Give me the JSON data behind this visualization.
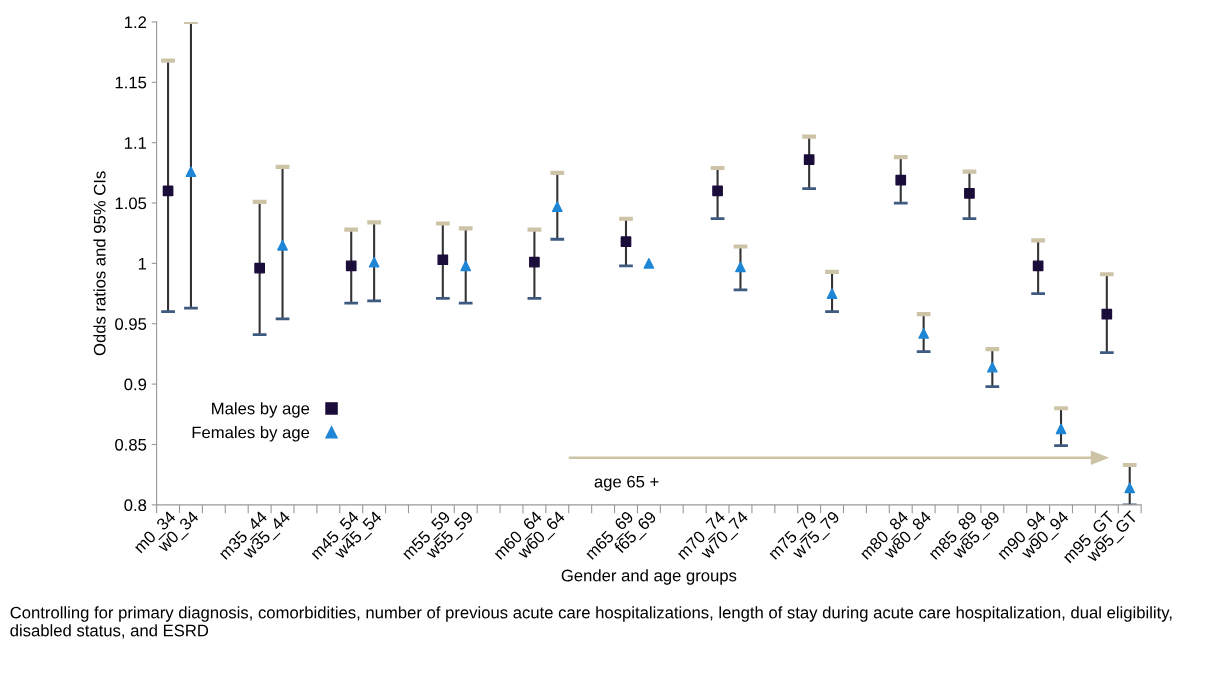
{
  "chart_data": {
    "type": "scatter",
    "xlabel": "Gender and age groups",
    "ylabel": "Odds ratios and 95% CIs",
    "categories": [
      "m0_34",
      "w0_34",
      null,
      null,
      "m35_44",
      "w35_44",
      null,
      null,
      "m45_54",
      "w45_54",
      null,
      null,
      "m55_59",
      "w55_59",
      null,
      null,
      "m60_64",
      "w60_64",
      null,
      null,
      "m65_69",
      "f65_69",
      null,
      null,
      "m70_74",
      "w70_74",
      null,
      null,
      "m75_79",
      "w75_79",
      null,
      null,
      "m80_84",
      "w80_84",
      null,
      "m85_89",
      "w85_89",
      null,
      "m90_94",
      "w90_94",
      null,
      "m95_GT",
      "w95_GT"
    ],
    "series": [
      {
        "name": "Males by age",
        "color": "#1a0d3a",
        "marker": "square",
        "values": [
          1.06,
          null,
          null,
          null,
          0.996,
          null,
          null,
          null,
          0.998,
          null,
          null,
          null,
          1.003,
          null,
          null,
          null,
          1.001,
          null,
          null,
          null,
          1.018,
          null,
          null,
          null,
          1.06,
          null,
          null,
          null,
          1.086,
          null,
          null,
          null,
          1.069,
          null,
          null,
          1.058,
          null,
          null,
          0.998,
          null,
          null,
          0.958,
          null
        ],
        "errors": [
          [
            0.96,
            1.168
          ],
          null,
          null,
          null,
          [
            0.941,
            1.051
          ],
          null,
          null,
          null,
          [
            0.967,
            1.028
          ],
          null,
          null,
          null,
          [
            0.971,
            1.033
          ],
          null,
          null,
          null,
          [
            0.971,
            1.028
          ],
          null,
          null,
          null,
          [
            0.998,
            1.037
          ],
          null,
          null,
          null,
          [
            1.037,
            1.079
          ],
          null,
          null,
          null,
          [
            1.062,
            1.105
          ],
          null,
          null,
          null,
          [
            1.05,
            1.088
          ],
          null,
          null,
          [
            1.037,
            1.076
          ],
          null,
          null,
          [
            0.975,
            1.019
          ],
          null,
          null,
          [
            0.926,
            0.991
          ],
          null
        ]
      },
      {
        "name": "Females by age",
        "color": "#1f86d6",
        "marker": "triangle",
        "values": [
          null,
          1.076,
          null,
          null,
          null,
          1.015,
          null,
          null,
          null,
          1.001,
          null,
          null,
          null,
          0.998,
          null,
          null,
          null,
          1.047,
          null,
          null,
          null,
          1.0,
          null,
          null,
          null,
          0.997,
          null,
          null,
          null,
          0.975,
          null,
          null,
          null,
          0.942,
          null,
          null,
          0.914,
          null,
          null,
          0.863,
          null,
          null,
          0.814
        ],
        "errors": [
          null,
          [
            0.963,
            1.2
          ],
          null,
          null,
          null,
          [
            0.954,
            1.08
          ],
          null,
          null,
          null,
          [
            0.969,
            1.034
          ],
          null,
          null,
          null,
          [
            0.967,
            1.029
          ],
          null,
          null,
          null,
          [
            1.02,
            1.075
          ],
          null,
          null,
          null,
          null,
          null,
          null,
          null,
          [
            0.978,
            1.014
          ],
          null,
          null,
          null,
          [
            0.96,
            0.993
          ],
          null,
          null,
          null,
          [
            0.927,
            0.958
          ],
          null,
          null,
          [
            0.898,
            0.929
          ],
          null,
          null,
          [
            0.849,
            0.88
          ],
          null,
          null,
          [
            0.8,
            0.833
          ]
        ]
      }
    ],
    "ylim": [
      0.8,
      1.2
    ],
    "yticks": [
      0.8,
      {
        "value": 0.85,
        "label": "0.85"
      },
      {
        "value": 0.9,
        "label": "0.9"
      },
      {
        "value": 0.95,
        "label": "0.95"
      },
      {
        "value": 1,
        "label": "1"
      },
      {
        "value": 1.05,
        "label": "1.05"
      },
      {
        "value": 1.1,
        "label": "1.1"
      },
      {
        "value": 1.15,
        "label": "1.15"
      },
      1.2
    ],
    "grid": false,
    "legend": "bottom left",
    "annotations": [
      "age 65 +",
      "Controlling for primary diagnosis, comorbidities, number of previous acute care hospitalizations, length of stay during acute care hospitalization, dual eligibility, disabled status, and ESRD"
    ]
  }
}
